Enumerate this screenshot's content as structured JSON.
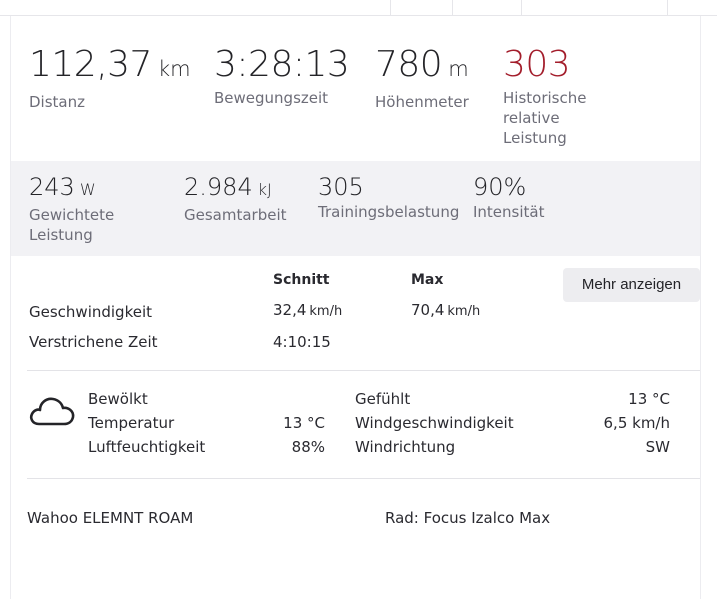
{
  "primary_stats": [
    {
      "value": "112,37",
      "unit": "km",
      "label": "Distanz"
    },
    {
      "value": "3:28:13",
      "unit": "",
      "label": "Bewegungszeit"
    },
    {
      "value": "780",
      "unit": "m",
      "label": "Höhenmeter"
    },
    {
      "value": "303",
      "unit": "",
      "label_lines": [
        "Historische",
        "relative",
        "Leistung"
      ],
      "color": "#a31d2b"
    }
  ],
  "secondary_stats": [
    {
      "value": "243",
      "unit": "W",
      "label_lines": [
        "Gewichtete",
        "Leistung"
      ]
    },
    {
      "value": "2.984",
      "unit": "kJ",
      "label": "Gesamtarbeit"
    },
    {
      "value": "305",
      "unit": "",
      "label": "Trainingsbelastung"
    },
    {
      "value": "90%",
      "unit": "",
      "label": "Intensität"
    }
  ],
  "speed_table": {
    "col_avg": "Schnitt",
    "col_max": "Max",
    "rows": [
      {
        "label": "Geschwindigkeit",
        "avg": "32,4",
        "avg_unit": "km/h",
        "max": "70,4",
        "max_unit": "km/h"
      },
      {
        "label": "Verstrichene Zeit",
        "avg": "4:10:15",
        "avg_unit": "",
        "max": "",
        "max_unit": ""
      }
    ],
    "more_button": "Mehr anzeigen"
  },
  "weather": {
    "icon": "cloud-icon",
    "condition": "Bewölkt",
    "temperature_label": "Temperatur",
    "temperature": "13 °C",
    "humidity_label": "Luftfeuchtigkeit",
    "humidity": "88%",
    "feels_like_label": "Gefühlt",
    "feels_like": "13 °C",
    "wind_speed_label": "Windgeschwindigkeit",
    "wind_speed": "6,5 km/h",
    "wind_direction_label": "Windrichtung",
    "wind_direction": "SW"
  },
  "footer": {
    "device": "Wahoo ELEMNT ROAM",
    "bike": "Rad: Focus Izalco Max"
  },
  "colors": {
    "accent_red": "#a31d2b",
    "band_bg": "#f2f2f5"
  }
}
